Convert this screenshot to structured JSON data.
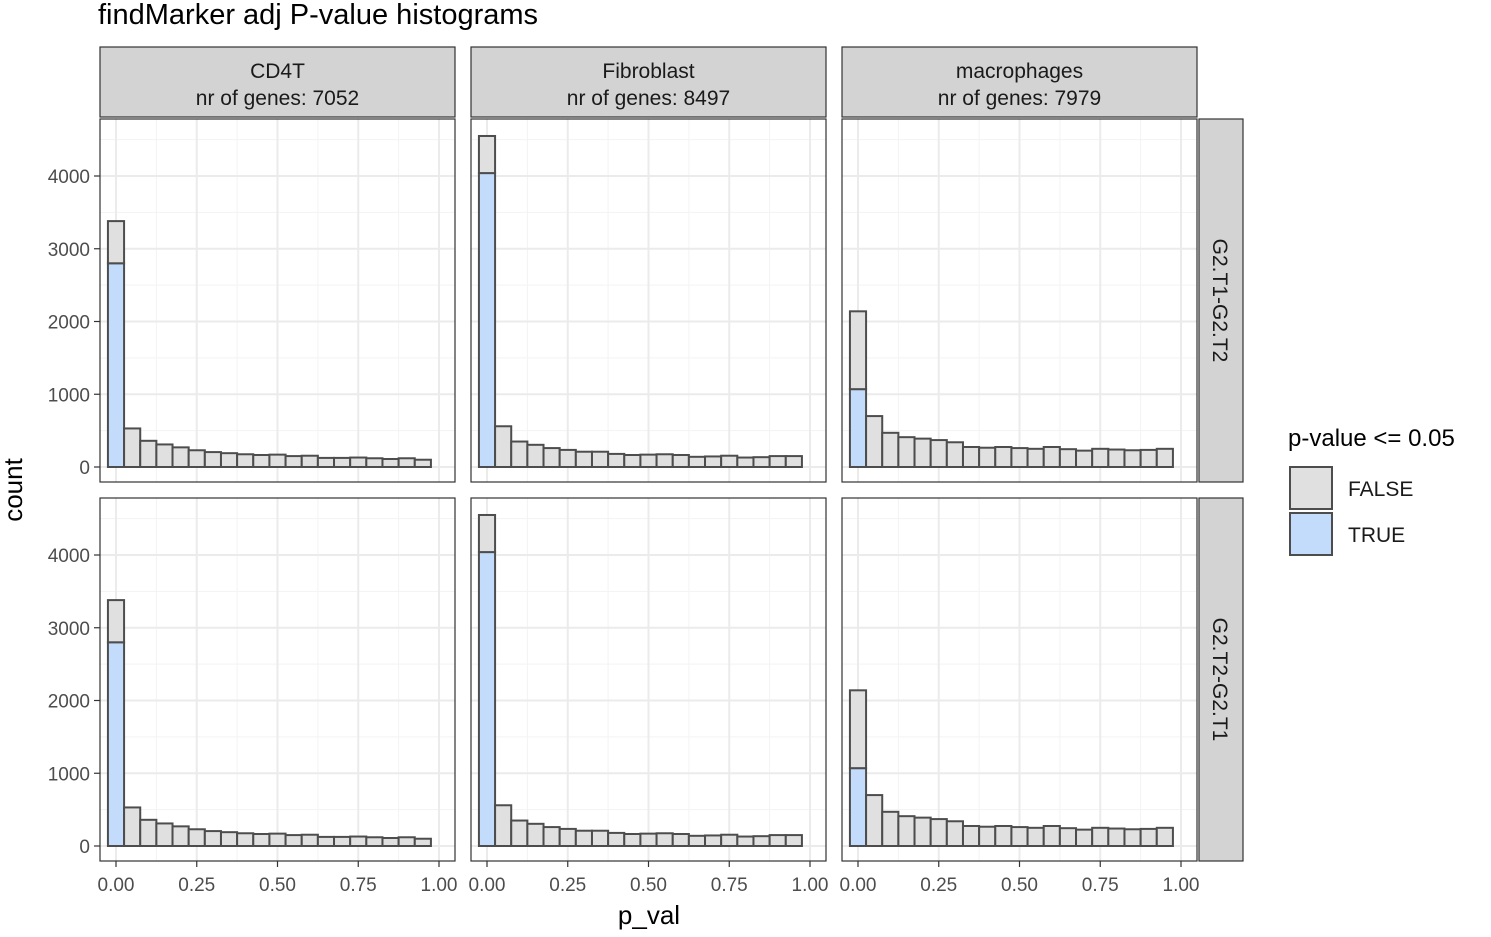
{
  "chart_data": {
    "type": "bar",
    "title": "findMarker adj P-value histograms",
    "xlabel": "p_val",
    "ylabel": "count",
    "xlim": [
      -0.025,
      1.025
    ],
    "ylim": [
      0,
      4800
    ],
    "xticks": [
      0,
      0.25,
      0.5,
      0.75,
      1
    ],
    "xtick_labels": [
      "0.00",
      "0.25",
      "0.50",
      "0.75",
      "1.00"
    ],
    "yticks": [
      0,
      1000,
      2000,
      3000,
      4000
    ],
    "ytick_labels": [
      "0",
      "1000",
      "2000",
      "3000",
      "4000"
    ],
    "bin_width": 0.05,
    "bin_centers": [
      0,
      0.05,
      0.1,
      0.15,
      0.2,
      0.25,
      0.3,
      0.35,
      0.4,
      0.45,
      0.5,
      0.55,
      0.6,
      0.65,
      0.7,
      0.75,
      0.8,
      0.85,
      0.9,
      0.95,
      1.0
    ],
    "grid": true,
    "stacked": true,
    "legend": {
      "title": "p-value <= 0.05",
      "position": "right",
      "entries": [
        {
          "label": "FALSE",
          "color": "#e0e0e0"
        },
        {
          "label": "TRUE",
          "color": "#c3dcfb"
        }
      ]
    },
    "colors": {
      "false_fill": "#e0e0e0",
      "true_fill": "#c3dcfb",
      "bar_stroke": "#4d4d4d",
      "strip_fill": "#d3d3d3",
      "grid_major": "#ebebeb",
      "panel_border": "#333333"
    },
    "columns": [
      {
        "label": "CD4T",
        "sublabel": "nr of genes: 7052"
      },
      {
        "label": "Fibroblast",
        "sublabel": "nr of genes: 8497"
      },
      {
        "label": "macrophages",
        "sublabel": "nr of genes: 7979"
      }
    ],
    "rows": [
      {
        "label": "G2.T1-G2.T2"
      },
      {
        "label": "G2.T2-G2.T1"
      }
    ],
    "panels": [
      {
        "row": 0,
        "col": 0,
        "true_values": [
          2800,
          0,
          0,
          0,
          0,
          0,
          0,
          0,
          0,
          0,
          0,
          0,
          0,
          0,
          0,
          0,
          0,
          0,
          0,
          0,
          0
        ],
        "false_values": [
          580,
          530,
          360,
          310,
          270,
          230,
          205,
          190,
          175,
          165,
          170,
          150,
          155,
          125,
          125,
          130,
          120,
          110,
          120,
          100,
          0
        ]
      },
      {
        "row": 0,
        "col": 1,
        "true_values": [
          4040,
          0,
          0,
          0,
          0,
          0,
          0,
          0,
          0,
          0,
          0,
          0,
          0,
          0,
          0,
          0,
          0,
          0,
          0,
          0,
          0
        ],
        "false_values": [
          510,
          560,
          350,
          305,
          260,
          235,
          210,
          210,
          180,
          165,
          170,
          175,
          165,
          140,
          145,
          155,
          130,
          135,
          150,
          150,
          0
        ]
      },
      {
        "row": 0,
        "col": 2,
        "true_values": [
          1070,
          0,
          0,
          0,
          0,
          0,
          0,
          0,
          0,
          0,
          0,
          0,
          0,
          0,
          0,
          0,
          0,
          0,
          0,
          0,
          0
        ],
        "false_values": [
          1070,
          700,
          470,
          410,
          390,
          370,
          340,
          275,
          265,
          275,
          260,
          250,
          275,
          245,
          225,
          250,
          240,
          230,
          235,
          250,
          0
        ]
      },
      {
        "row": 1,
        "col": 0,
        "true_values": [
          2800,
          0,
          0,
          0,
          0,
          0,
          0,
          0,
          0,
          0,
          0,
          0,
          0,
          0,
          0,
          0,
          0,
          0,
          0,
          0,
          0
        ],
        "false_values": [
          580,
          530,
          360,
          310,
          270,
          230,
          205,
          190,
          175,
          165,
          170,
          150,
          155,
          125,
          125,
          130,
          120,
          110,
          120,
          100,
          0
        ]
      },
      {
        "row": 1,
        "col": 1,
        "true_values": [
          4040,
          0,
          0,
          0,
          0,
          0,
          0,
          0,
          0,
          0,
          0,
          0,
          0,
          0,
          0,
          0,
          0,
          0,
          0,
          0,
          0
        ],
        "false_values": [
          510,
          560,
          350,
          305,
          260,
          235,
          210,
          210,
          180,
          165,
          170,
          175,
          165,
          140,
          145,
          155,
          130,
          135,
          150,
          150,
          0
        ]
      },
      {
        "row": 1,
        "col": 2,
        "true_values": [
          1070,
          0,
          0,
          0,
          0,
          0,
          0,
          0,
          0,
          0,
          0,
          0,
          0,
          0,
          0,
          0,
          0,
          0,
          0,
          0,
          0
        ],
        "false_values": [
          1070,
          700,
          470,
          410,
          390,
          370,
          340,
          275,
          265,
          275,
          260,
          250,
          275,
          245,
          225,
          250,
          240,
          230,
          235,
          250,
          0
        ]
      }
    ]
  }
}
